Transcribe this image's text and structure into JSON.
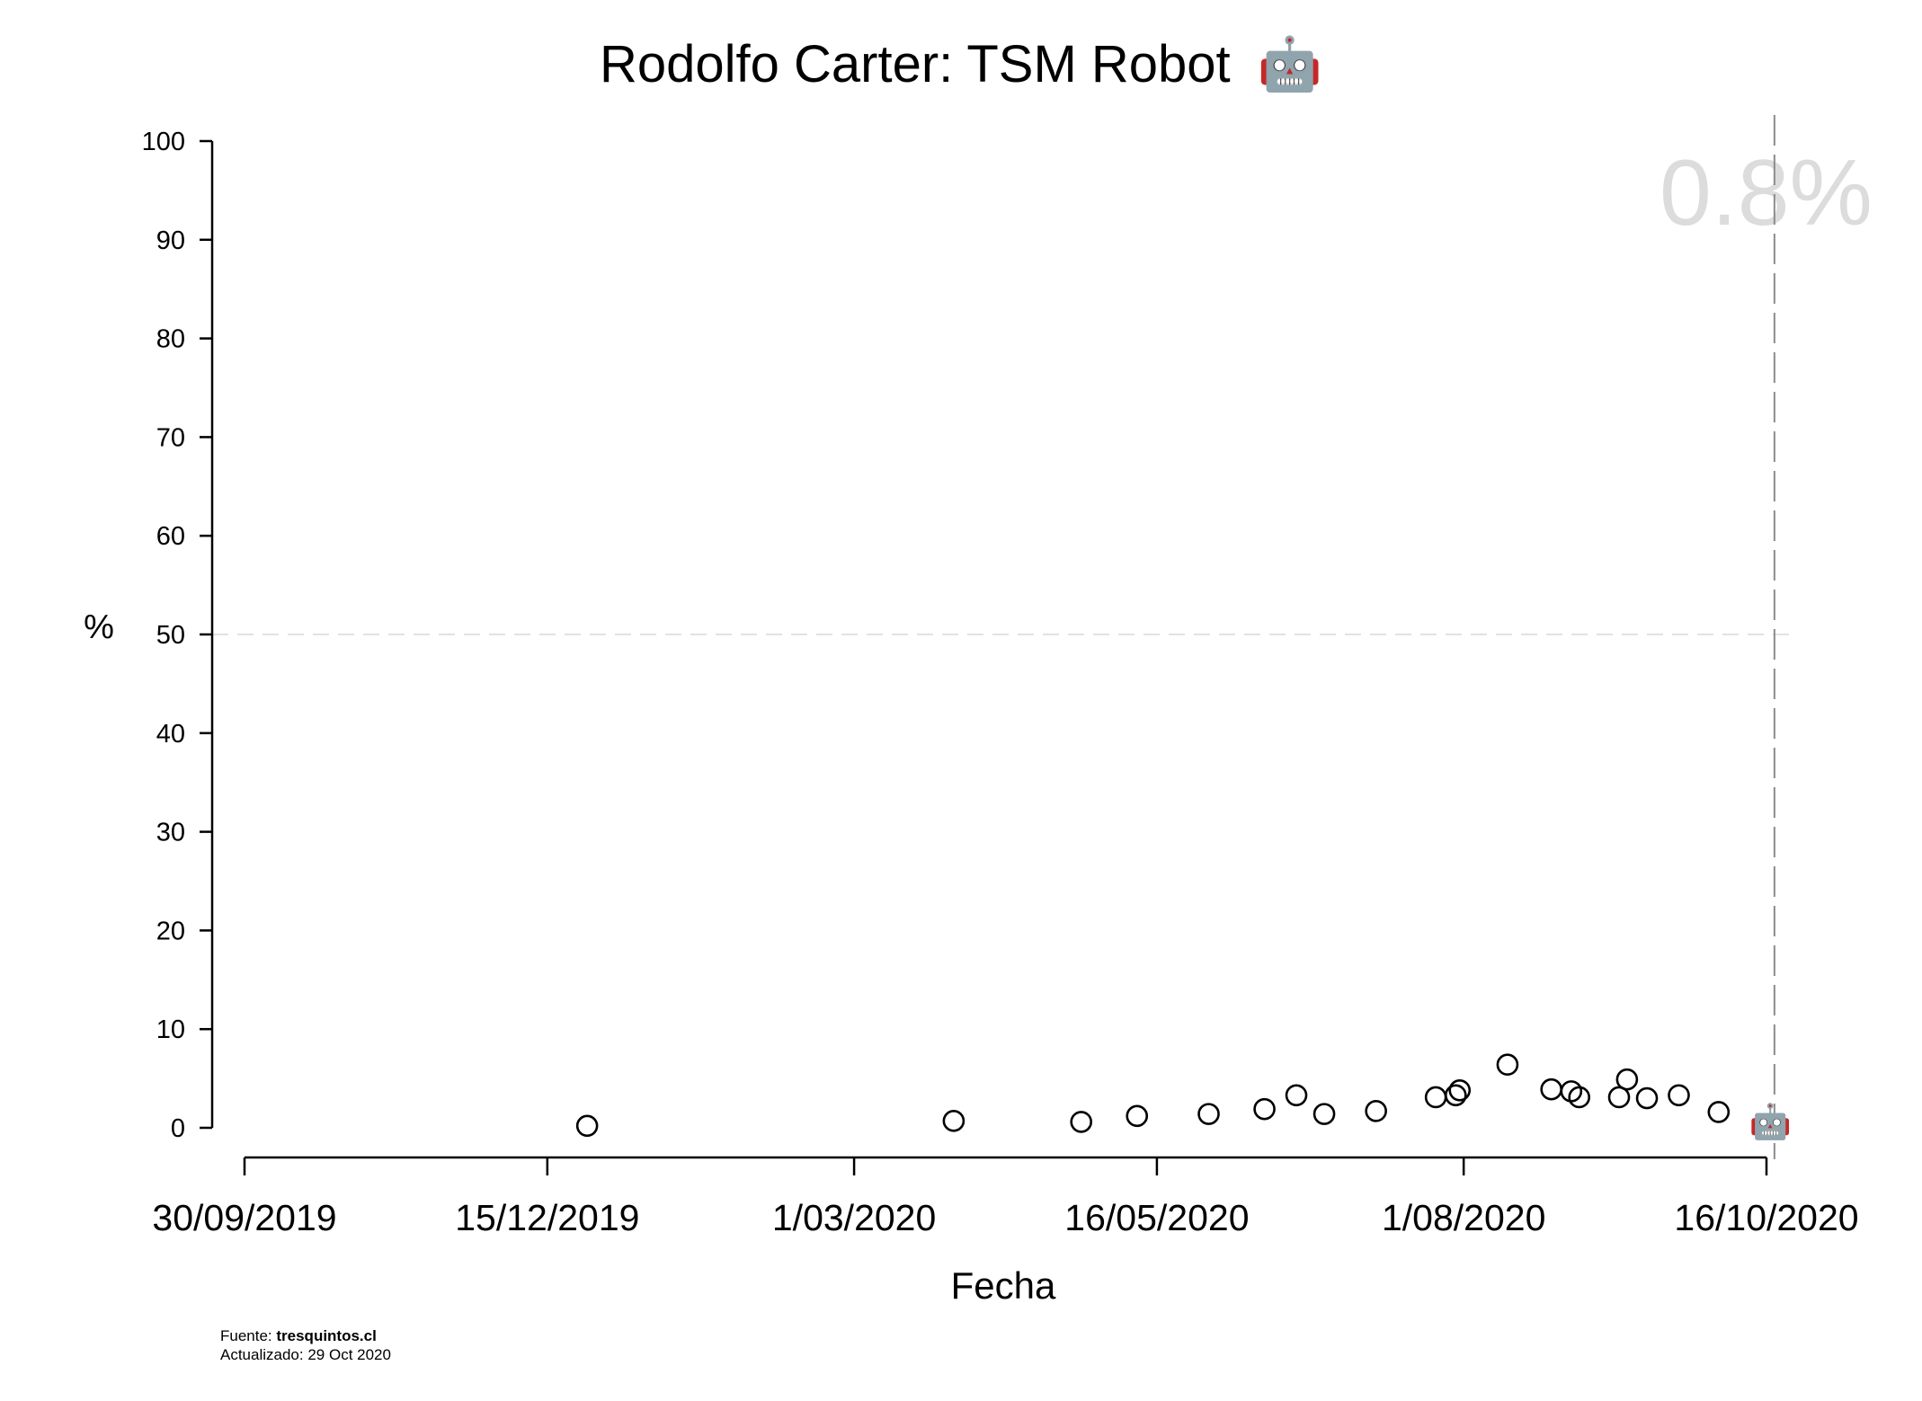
{
  "chart_data": {
    "type": "scatter",
    "title": "Rodolfo Carter: TSM Robot",
    "title_emoji": "🤖",
    "xlabel": "Fecha",
    "ylabel": "%",
    "ylim": [
      0,
      100
    ],
    "xlim": [
      "2019-09-30",
      "2020-10-16"
    ],
    "yticks": [
      0,
      10,
      20,
      30,
      40,
      50,
      60,
      70,
      80,
      90,
      100
    ],
    "xticks": [
      {
        "date": "2019-09-30",
        "label": "30/09/2019"
      },
      {
        "date": "2019-12-15",
        "label": "15/12/2019"
      },
      {
        "date": "2020-03-01",
        "label": "1/03/2020"
      },
      {
        "date": "2020-05-16",
        "label": "16/05/2020"
      },
      {
        "date": "2020-08-01",
        "label": "1/08/2020"
      },
      {
        "date": "2020-10-16",
        "label": "16/10/2020"
      }
    ],
    "reference_hline": 50,
    "reference_vline": "2020-10-18",
    "latest_value_label": "0.8%",
    "latest_marker": {
      "date": "2020-10-17",
      "value": 0.8,
      "emoji": "🤖"
    },
    "grid": false,
    "series": [
      {
        "marker": "open-circle",
        "points": [
          {
            "x": "2019-12-25",
            "y": 0.2
          },
          {
            "x": "2020-03-26",
            "y": 0.7
          },
          {
            "x": "2020-04-27",
            "y": 0.6
          },
          {
            "x": "2020-05-11",
            "y": 1.2
          },
          {
            "x": "2020-05-29",
            "y": 1.4
          },
          {
            "x": "2020-06-12",
            "y": 1.9
          },
          {
            "x": "2020-06-20",
            "y": 3.3
          },
          {
            "x": "2020-06-27",
            "y": 1.4
          },
          {
            "x": "2020-07-10",
            "y": 1.7
          },
          {
            "x": "2020-07-25",
            "y": 3.1
          },
          {
            "x": "2020-07-30",
            "y": 3.3
          },
          {
            "x": "2020-07-31",
            "y": 3.8
          },
          {
            "x": "2020-08-12",
            "y": 6.4
          },
          {
            "x": "2020-08-23",
            "y": 3.9
          },
          {
            "x": "2020-08-28",
            "y": 3.7
          },
          {
            "x": "2020-08-30",
            "y": 3.1
          },
          {
            "x": "2020-09-09",
            "y": 3.1
          },
          {
            "x": "2020-09-11",
            "y": 4.9
          },
          {
            "x": "2020-09-16",
            "y": 3.0
          },
          {
            "x": "2020-09-24",
            "y": 3.3
          },
          {
            "x": "2020-10-04",
            "y": 1.6
          }
        ]
      }
    ],
    "colors": {
      "axis": "#000000",
      "marker": "#000000",
      "reference": "#d9d9d9",
      "vline": "#8c8c8c",
      "latest_label": "#dcdcdc"
    }
  },
  "footer": {
    "source_prefix": "Fuente: ",
    "source_name": "tresquintos.cl",
    "updated": "Actualizado: 29 Oct 2020"
  }
}
